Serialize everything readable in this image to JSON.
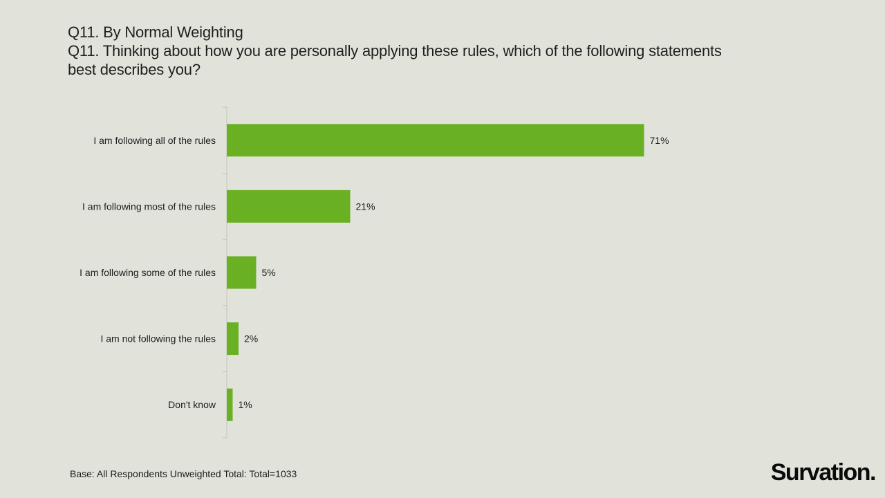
{
  "header": {
    "title_line1": "Q11. By Normal Weighting",
    "title_line2": "Q11. Thinking about how you are personally applying these rules, which of the following statements",
    "title_line3": "best describes you?"
  },
  "chart_data": {
    "type": "bar",
    "orientation": "horizontal",
    "categories": [
      "I am following all of the rules",
      "I am following most of the rules",
      "I am following some of the rules",
      "I am not following the rules",
      "Don't know"
    ],
    "values": [
      71,
      21,
      5,
      2,
      1
    ],
    "value_labels": [
      "71%",
      "21%",
      "5%",
      "2%",
      "1%"
    ],
    "unit": "%",
    "xlim": [
      0,
      100
    ],
    "grid": false,
    "bar_color": "#6ab023"
  },
  "footer": {
    "base_note": "Base: All Respondents Unweighted Total: Total=1033",
    "logo_text": "Survation."
  }
}
